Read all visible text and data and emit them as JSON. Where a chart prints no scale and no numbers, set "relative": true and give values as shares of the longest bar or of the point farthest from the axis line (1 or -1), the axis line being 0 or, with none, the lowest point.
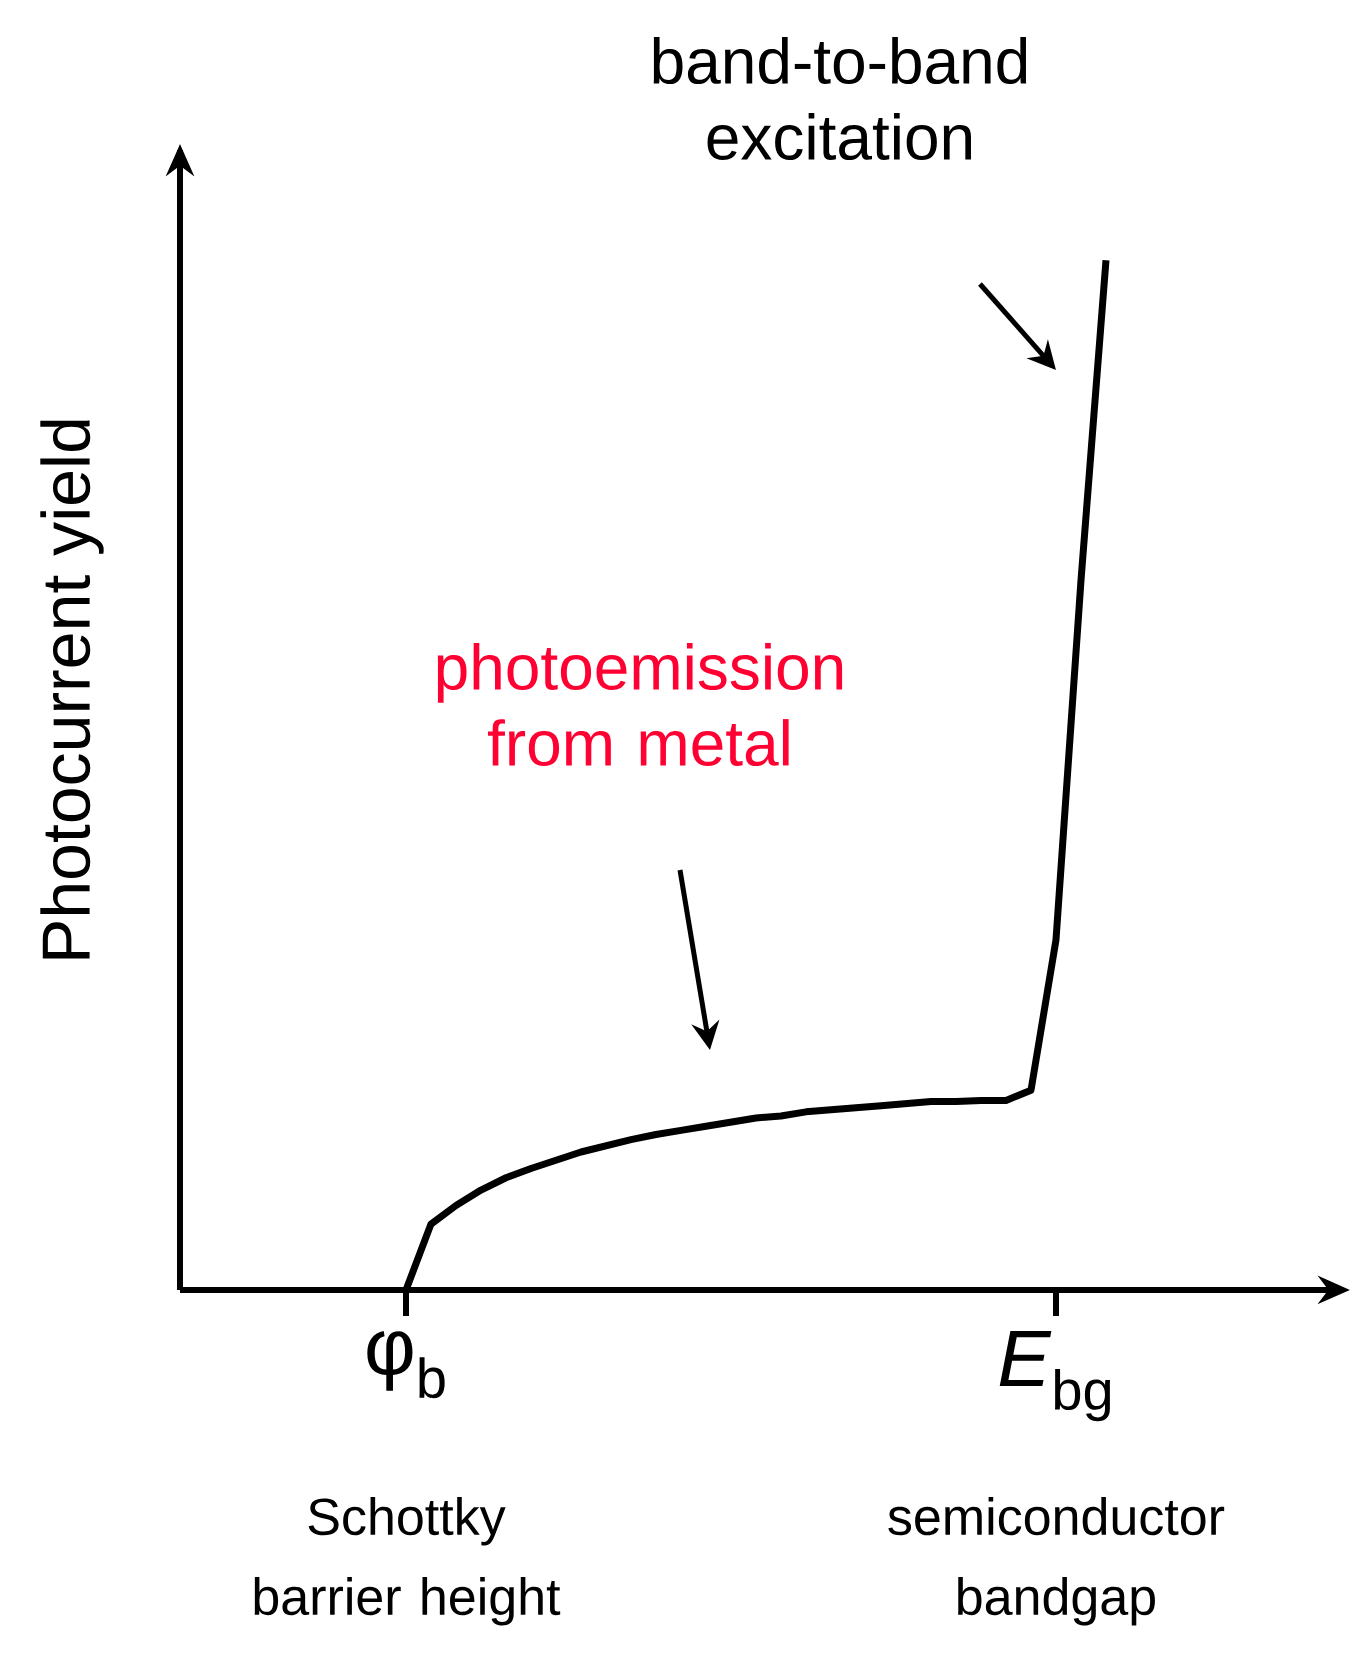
{
  "chart_data": {
    "type": "line",
    "relative": true,
    "ylabel": "Photocurrent yield",
    "color": "#000000",
    "categories": [
      "φ$_{b}$",
      null,
      null,
      null,
      null,
      null,
      null,
      null,
      null,
      null,
      null,
      null,
      null,
      null,
      null,
      null,
      null,
      null,
      null,
      null,
      null,
      null,
      null,
      null,
      null,
      null,
      "*E*$_{bg}$",
      null,
      null
    ],
    "values": [
      0,
      0.064,
      0.082,
      0.097,
      0.109,
      0.118,
      0.126,
      0.134,
      0.14,
      0.146,
      0.151,
      0.155,
      0.159,
      0.163,
      0.167,
      0.169,
      0.173,
      0.175,
      0.177,
      0.179,
      0.181,
      0.183,
      0.183,
      0.184,
      0.184,
      0.194,
      0.34,
      0.689,
      1.0
    ],
    "annotations": [
      "band-to-band excitation",
      "photoemission from metal",
      "Schottky barrier height",
      "semiconductor bandgap"
    ]
  }
}
